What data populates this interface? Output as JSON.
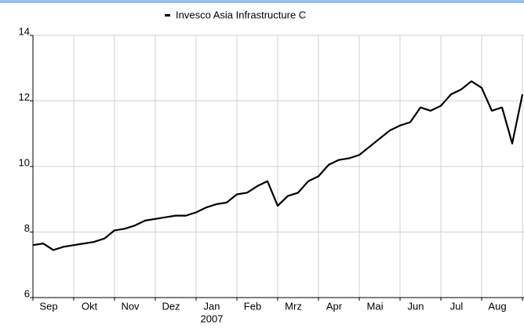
{
  "chart_data": {
    "type": "line",
    "legend": "Invesco Asia Infrastructure C",
    "categories": [
      null,
      null,
      "Sep",
      null,
      null,
      null,
      "Okt",
      null,
      null,
      null,
      "Nov",
      null,
      null,
      null,
      "Dez",
      null,
      null,
      null,
      "Jan",
      null,
      null,
      null,
      "Feb",
      null,
      null,
      null,
      "Mrz",
      null,
      null,
      null,
      "Apr",
      null,
      null,
      null,
      "Mai",
      null,
      null,
      null,
      "Jun",
      null,
      null,
      null,
      "Jul",
      null,
      null,
      null,
      "Aug",
      null,
      null
    ],
    "year_label": "2007",
    "series": [
      {
        "name": "Invesco Asia Infrastructure C",
        "color": "#000000",
        "values": [
          7.6,
          7.65,
          7.45,
          7.55,
          7.6,
          7.65,
          7.7,
          7.8,
          8.05,
          8.1,
          8.2,
          8.35,
          8.4,
          8.45,
          8.5,
          8.5,
          8.6,
          8.75,
          8.85,
          8.9,
          9.15,
          9.2,
          9.4,
          9.55,
          8.8,
          9.1,
          9.2,
          9.55,
          9.7,
          10.05,
          10.2,
          10.25,
          10.35,
          10.6,
          10.85,
          11.1,
          11.25,
          11.35,
          11.8,
          11.7,
          11.85,
          12.2,
          12.35,
          12.6,
          12.4,
          11.7,
          11.8,
          10.7,
          12.2
        ]
      }
    ],
    "ylim": [
      6,
      14
    ],
    "yticks": [
      6,
      8,
      10,
      12,
      14
    ],
    "grid": true
  }
}
